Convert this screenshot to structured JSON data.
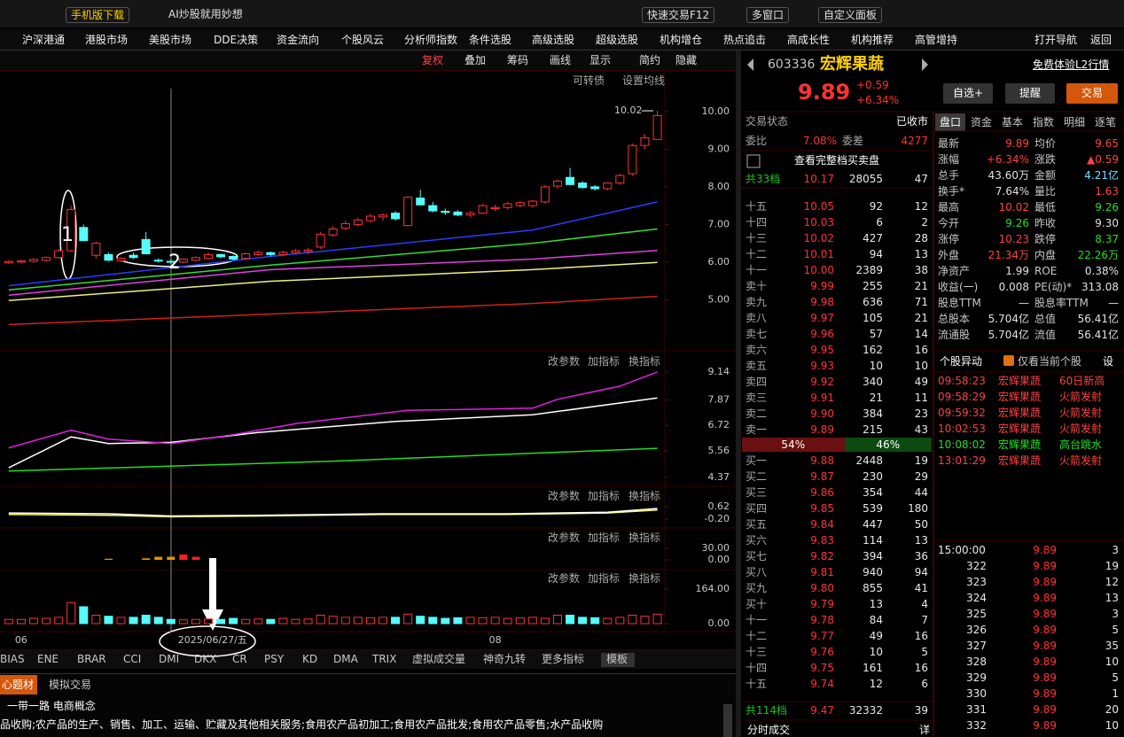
{
  "top_bar": {
    "buttons": [
      "手机版下载",
      "AI炒股就用妙想",
      "快速交易F12",
      "多窗口",
      "自定义面板"
    ]
  },
  "menu": {
    "items": [
      "沪深港通",
      "港股市场",
      "美股市场",
      "DDE决策",
      "资金流向",
      "个股风云",
      "分析师指数",
      "条件选股",
      "高级选股",
      "超级选股",
      "机构增仓",
      "热点追击",
      "高成长性",
      "机构推荐",
      "高管增持"
    ],
    "right": [
      "打开导航",
      "返回"
    ]
  },
  "toolbar": {
    "items": [
      "复权",
      "叠加",
      "筹码",
      "画线",
      "显示",
      "简约",
      "隐藏"
    ],
    "links": [
      "可转债",
      "设置均线"
    ]
  },
  "panel_buttons": [
    "改参数",
    "加指标",
    "换指标"
  ],
  "annotations": [
    "1",
    "2"
  ],
  "chart_data": [
    {
      "type": "candlestick",
      "xlim": [
        -0.7,
        52.6
      ],
      "ylim": [
        3.69,
        10.61
      ],
      "yticks": [
        {
          "value": 5,
          "label": "5.00"
        },
        {
          "value": 6,
          "label": "6.00"
        },
        {
          "value": 7,
          "label": "7.00"
        },
        {
          "value": 8,
          "label": "8.00"
        },
        {
          "value": 9,
          "label": "9.00"
        },
        {
          "value": 10,
          "label": "10.00"
        }
      ],
      "xticks": [
        {
          "value": 0.5,
          "label": "06"
        },
        {
          "value": 13,
          "label": "2025/06/27/五"
        },
        {
          "value": 38.5,
          "label": "08"
        }
      ],
      "up_color": "#ff3232",
      "down_color": "#54fcfc",
      "open": [
        5.98,
        6.0,
        6.02,
        6.05,
        6.12,
        6.3,
        6.92,
        6.18,
        6.2,
        6.03,
        6.18,
        6.6,
        6.05,
        6.02,
        6.0,
        6.05,
        6.1,
        6.2,
        6.15,
        6.1,
        6.2,
        6.25,
        6.2,
        6.25,
        6.28,
        6.4,
        6.72,
        6.9,
        7.0,
        7.1,
        7.2,
        7.3,
        6.97,
        7.7,
        7.5,
        7.35,
        7.33,
        7.25,
        7.3,
        7.42,
        7.45,
        7.5,
        7.5,
        7.6,
        8.02,
        8.25,
        8.1,
        8.0,
        7.95,
        8.1,
        8.35,
        9.1,
        9.26
      ],
      "high": [
        6.05,
        6.05,
        6.1,
        6.15,
        6.35,
        7.5,
        7.0,
        6.55,
        6.25,
        6.12,
        6.25,
        6.8,
        6.1,
        6.08,
        6.1,
        6.15,
        6.25,
        6.22,
        6.18,
        6.25,
        6.3,
        6.28,
        6.3,
        6.35,
        6.38,
        6.8,
        6.95,
        7.1,
        7.18,
        7.28,
        7.3,
        7.35,
        7.75,
        7.92,
        7.6,
        7.42,
        7.38,
        7.35,
        7.55,
        7.52,
        7.6,
        7.62,
        7.65,
        8.05,
        8.2,
        8.5,
        8.15,
        8.05,
        8.12,
        8.35,
        9.15,
        9.4,
        10.02
      ],
      "low": [
        5.95,
        5.96,
        5.98,
        6.0,
        6.1,
        6.28,
        6.55,
        6.1,
        6.02,
        6.0,
        6.08,
        6.2,
        5.98,
        5.95,
        5.97,
        6.02,
        6.08,
        6.1,
        6.05,
        6.08,
        6.15,
        6.15,
        6.18,
        6.2,
        6.22,
        6.35,
        6.68,
        6.85,
        6.95,
        7.05,
        7.1,
        7.1,
        6.95,
        7.5,
        7.32,
        7.25,
        7.22,
        7.2,
        7.28,
        7.35,
        7.4,
        7.45,
        7.45,
        7.55,
        7.95,
        8.05,
        7.95,
        7.9,
        7.9,
        8.05,
        8.3,
        9.0,
        9.26
      ],
      "close": [
        6.02,
        6.03,
        6.07,
        6.12,
        6.3,
        7.4,
        6.57,
        6.5,
        6.05,
        6.1,
        6.12,
        6.22,
        6.04,
        6.0,
        6.08,
        6.12,
        6.2,
        6.14,
        6.08,
        6.22,
        6.26,
        6.2,
        6.26,
        6.3,
        6.32,
        6.74,
        6.88,
        7.02,
        7.12,
        7.22,
        7.25,
        7.15,
        7.72,
        7.52,
        7.36,
        7.32,
        7.25,
        7.3,
        7.5,
        7.45,
        7.55,
        7.58,
        7.62,
        8.0,
        8.15,
        8.06,
        7.98,
        7.95,
        8.1,
        8.3,
        9.1,
        9.3,
        9.89
      ],
      "lines": [
        {
          "color": "#2a3cff",
          "x": [
            0,
            21,
            42,
            52
          ],
          "values": [
            5.37,
            6.15,
            6.85,
            7.6
          ]
        },
        {
          "color": "#33dd33",
          "x": [
            0,
            21,
            42,
            52
          ],
          "values": [
            5.26,
            5.92,
            6.5,
            6.88
          ]
        },
        {
          "color": "#e040e0",
          "x": [
            0,
            21,
            42,
            52
          ],
          "values": [
            5.12,
            5.8,
            6.08,
            6.31
          ]
        },
        {
          "color": "#f0f080",
          "x": [
            0,
            21,
            42,
            52
          ],
          "values": [
            4.98,
            5.49,
            5.8,
            5.99
          ]
        },
        {
          "color": "#d02020",
          "x": [
            0,
            21,
            42,
            52
          ],
          "values": [
            4.34,
            4.62,
            4.9,
            5.09
          ]
        }
      ],
      "high_label": "10.02"
    },
    {
      "type": "line",
      "ylim": [
        4.0,
        9.94
      ],
      "yticks": [
        9.14,
        7.87,
        6.72,
        5.56,
        4.37
      ],
      "lines": [
        {
          "color": "#ffffff",
          "x": [
            0,
            5,
            8,
            13,
            20,
            31,
            42,
            52
          ],
          "values": [
            4.8,
            6.2,
            5.9,
            5.95,
            6.4,
            6.9,
            7.2,
            7.96
          ]
        },
        {
          "color": "#e020e0",
          "x": [
            0,
            5,
            8,
            13,
            18,
            23,
            32,
            42,
            44,
            49,
            52
          ],
          "values": [
            5.7,
            6.5,
            6.1,
            5.9,
            6.3,
            6.8,
            7.4,
            7.5,
            7.9,
            8.5,
            9.14
          ]
        },
        {
          "color": "#22dd22",
          "x": [
            0,
            26,
            52
          ],
          "values": [
            4.65,
            5.1,
            5.68
          ]
        }
      ]
    },
    {
      "type": "line",
      "ylim": [
        -0.73,
        1.79
      ],
      "yticks": [
        0.62,
        {
          "value": -0.2,
          "label": "-0.20"
        }
      ],
      "lines": [
        {
          "color": "#ffff60",
          "x": [
            0,
            8,
            13,
            20,
            30,
            40,
            48,
            52
          ],
          "values": [
            0.1,
            0.05,
            -0.05,
            0.0,
            0.1,
            0.1,
            0.2,
            0.4
          ]
        },
        {
          "color": "#ffffff",
          "x": [
            0,
            8,
            13,
            20,
            30,
            40,
            48,
            52
          ],
          "values": [
            0.2,
            0.15,
            0.0,
            0.05,
            0.15,
            0.15,
            0.25,
            0.5
          ]
        }
      ]
    },
    {
      "type": "bar",
      "ylim": [
        -23,
        78.5
      ],
      "yticks": [
        {
          "value": 30,
          "label": "30.00"
        },
        {
          "value": 0,
          "label": "0.00"
        }
      ],
      "bars": [
        {
          "x": 8,
          "value": 3,
          "color": "#e89000"
        },
        {
          "x": 11,
          "value": 4,
          "color": "#e89000"
        },
        {
          "x": 12,
          "value": 8,
          "color": "#e89000"
        },
        {
          "x": 13,
          "value": 8,
          "color": "#e89000"
        },
        {
          "x": 14,
          "value": 14,
          "color": "#ff2020"
        },
        {
          "x": 15,
          "value": 8,
          "color": "#ff2020"
        }
      ]
    },
    {
      "type": "volume",
      "ylim": [
        -33.6,
        248.1
      ],
      "yticks": [
        {
          "value": 164,
          "label": "164.00"
        },
        {
          "value": 0,
          "label": "0.00"
        }
      ],
      "values": [
        20,
        20,
        25,
        25,
        30,
        100,
        80,
        40,
        35,
        30,
        30,
        40,
        30,
        20,
        18,
        20,
        22,
        20,
        25,
        20,
        22,
        20,
        25,
        20,
        22,
        40,
        35,
        30,
        30,
        28,
        30,
        30,
        45,
        35,
        30,
        25,
        28,
        30,
        28,
        30,
        25,
        28,
        30,
        25,
        40,
        40,
        30,
        28,
        25,
        30,
        40,
        35,
        45
      ]
    }
  ],
  "indicator_tabs": [
    "BIAS",
    "ENE",
    "BRAR",
    "CCI",
    "DMI",
    "DKX",
    "CR",
    "PSY",
    "KD",
    "DMA",
    "TRIX",
    "虚拟成交量",
    "神奇九转",
    "更多指标",
    "模板"
  ],
  "bottom": {
    "tabs": [
      "心题材",
      "模拟交易"
    ],
    "concepts": "一带一路  电商概念",
    "text": "品收购;农产品的生产、销售、加工、运输、贮藏及其他相关服务;食用农产品初加工;食用农产品批发;食用农产品零售;水产品收购"
  },
  "quote": {
    "code": "603336",
    "name": "宏辉果蔬",
    "l2": "免费体验L2行情",
    "price": "9.89",
    "change": "+0.59",
    "pct": "+6.34%",
    "buttons": [
      "自选+",
      "提醒",
      "交易"
    ]
  },
  "order_book": {
    "status_label": "交易状态",
    "status": "已收市",
    "ratio_label": "委比",
    "ratio": "7.08%",
    "diff_label": "委差",
    "diff": "4277",
    "full": "查看完整档买卖盘",
    "ask_total": [
      "共33档",
      "10.17",
      "28055",
      "47"
    ],
    "asks": [
      [
        "十五",
        "10.05",
        "92",
        "12"
      ],
      [
        "十四",
        "10.03",
        "6",
        "2"
      ],
      [
        "十三",
        "10.02",
        "427",
        "28"
      ],
      [
        "十二",
        "10.01",
        "94",
        "13"
      ],
      [
        "十一",
        "10.00",
        "2389",
        "38"
      ],
      [
        "卖十",
        "9.99",
        "255",
        "21"
      ],
      [
        "卖九",
        "9.98",
        "636",
        "71"
      ],
      [
        "卖八",
        "9.97",
        "105",
        "21"
      ],
      [
        "卖七",
        "9.96",
        "57",
        "14"
      ],
      [
        "卖六",
        "9.95",
        "162",
        "16"
      ],
      [
        "卖五",
        "9.93",
        "10",
        "10"
      ],
      [
        "卖四",
        "9.92",
        "340",
        "49"
      ],
      [
        "卖三",
        "9.91",
        "21",
        "11"
      ],
      [
        "卖二",
        "9.90",
        "384",
        "23"
      ],
      [
        "卖一",
        "9.89",
        "215",
        "43"
      ]
    ],
    "split": [
      {
        "value": 54,
        "label": "54%"
      },
      {
        "value": 46,
        "label": "46%"
      }
    ],
    "bids": [
      [
        "买一",
        "9.88",
        "2448",
        "19"
      ],
      [
        "买二",
        "9.87",
        "230",
        "29"
      ],
      [
        "买三",
        "9.86",
        "354",
        "44"
      ],
      [
        "买四",
        "9.85",
        "539",
        "180"
      ],
      [
        "买五",
        "9.84",
        "447",
        "50"
      ],
      [
        "买六",
        "9.83",
        "114",
        "13"
      ],
      [
        "买七",
        "9.82",
        "394",
        "36"
      ],
      [
        "买八",
        "9.81",
        "940",
        "94"
      ],
      [
        "买九",
        "9.80",
        "855",
        "41"
      ],
      [
        "买十",
        "9.79",
        "13",
        "4"
      ],
      [
        "十一",
        "9.78",
        "84",
        "7"
      ],
      [
        "十二",
        "9.77",
        "49",
        "16"
      ],
      [
        "十三",
        "9.76",
        "10",
        "5"
      ],
      [
        "十四",
        "9.75",
        "161",
        "16"
      ],
      [
        "十五",
        "9.74",
        "12",
        "6"
      ]
    ],
    "bid_total": [
      "共114档",
      "9.47",
      "32332",
      "39"
    ],
    "footer": "分时成交",
    "detail": "详"
  },
  "stats": {
    "tabs": [
      "盘口",
      "资金",
      "基本",
      "指数",
      "明细",
      "逐笔"
    ],
    "rows": [
      [
        {
          "label": "最新",
          "value": "9.89",
          "color": "#ff4040"
        },
        {
          "label": "均价",
          "value": "9.65",
          "color": "#ff4040"
        }
      ],
      [
        {
          "label": "涨幅",
          "value": "+6.34%",
          "color": "#ff4040"
        },
        {
          "label": "涨跌",
          "value": "▲0.59",
          "color": "#ff4040"
        }
      ],
      [
        {
          "label": "总手",
          "value": "43.60万",
          "color": "#e0e0e0"
        },
        {
          "label": "金额",
          "value": "4.21亿",
          "color": "#70e0ff"
        }
      ],
      [
        {
          "label": "换手*",
          "value": "7.64%",
          "color": "#e0e0e0"
        },
        {
          "label": "量比",
          "value": "1.63",
          "color": "#ff4040"
        }
      ],
      [
        {
          "label": "最高",
          "value": "10.02",
          "color": "#ff4040"
        },
        {
          "label": "最低",
          "value": "9.26",
          "color": "#20e020"
        }
      ],
      [
        {
          "label": "今开",
          "value": "9.26",
          "color": "#20e020"
        },
        {
          "label": "昨收",
          "value": "9.30",
          "color": "#e0e0e0"
        }
      ],
      [
        {
          "label": "涨停",
          "value": "10.23",
          "color": "#ff4040"
        },
        {
          "label": "跌停",
          "value": "8.37",
          "color": "#20e020"
        }
      ],
      [
        {
          "label": "外盘",
          "value": "21.34万",
          "color": "#ff4040"
        },
        {
          "label": "内盘",
          "value": "22.26万",
          "color": "#20e020"
        }
      ],
      [
        {
          "label": "净资产",
          "value": "1.99",
          "color": "#e0e0e0"
        },
        {
          "label": "ROE",
          "value": "0.38%",
          "color": "#e0e0e0"
        }
      ],
      [
        {
          "label": "收益(一)",
          "value": "0.008",
          "color": "#e0e0e0"
        },
        {
          "label": "PE(动)*",
          "value": "313.08",
          "color": "#e0e0e0"
        }
      ],
      [
        {
          "label": "股息TTM",
          "value": "—",
          "color": "#e0e0e0"
        },
        {
          "label": "股息率TTM",
          "value": "—",
          "color": "#e0e0e0"
        }
      ],
      [
        {
          "label": "总股本",
          "value": "5.704亿",
          "color": "#e0e0e0"
        },
        {
          "label": "总值",
          "value": "56.41亿",
          "color": "#e0e0e0"
        }
      ],
      [
        {
          "label": "流通股",
          "value": "5.704亿",
          "color": "#e0e0e0"
        },
        {
          "label": "流值",
          "value": "56.41亿",
          "color": "#e0e0e0"
        }
      ]
    ]
  },
  "alerts": {
    "title": "个股异动",
    "filter": "仅看当前个股",
    "settings": "设",
    "rows": [
      {
        "time": "09:58:23",
        "name": "宏辉果蔬",
        "event": "60日新高",
        "color": "#ff4040"
      },
      {
        "time": "09:58:29",
        "name": "宏辉果蔬",
        "event": "火箭发射",
        "color": "#ff4040"
      },
      {
        "time": "09:59:32",
        "name": "宏辉果蔬",
        "event": "火箭发射",
        "color": "#ff4040"
      },
      {
        "time": "10:02:53",
        "name": "宏辉果蔬",
        "event": "火箭发射",
        "color": "#ff4040"
      },
      {
        "time": "10:08:02",
        "name": "宏辉果蔬",
        "event": "高台跳水",
        "color": "#20e020"
      },
      {
        "time": "13:01:29",
        "name": "宏辉果蔬",
        "event": "火箭发射",
        "color": "#ff4040"
      }
    ]
  },
  "ticks": [
    [
      "15:00:00",
      "9.89",
      "3"
    ],
    [
      "322",
      "9.89",
      "19"
    ],
    [
      "323",
      "9.89",
      "12"
    ],
    [
      "324",
      "9.89",
      "13"
    ],
    [
      "325",
      "9.89",
      "3"
    ],
    [
      "326",
      "9.89",
      "5"
    ],
    [
      "327",
      "9.89",
      "35"
    ],
    [
      "328",
      "9.89",
      "10"
    ],
    [
      "329",
      "9.89",
      "5"
    ],
    [
      "330",
      "9.89",
      "1"
    ],
    [
      "331",
      "9.89",
      "20"
    ],
    [
      "332",
      "9.89",
      "10"
    ]
  ]
}
